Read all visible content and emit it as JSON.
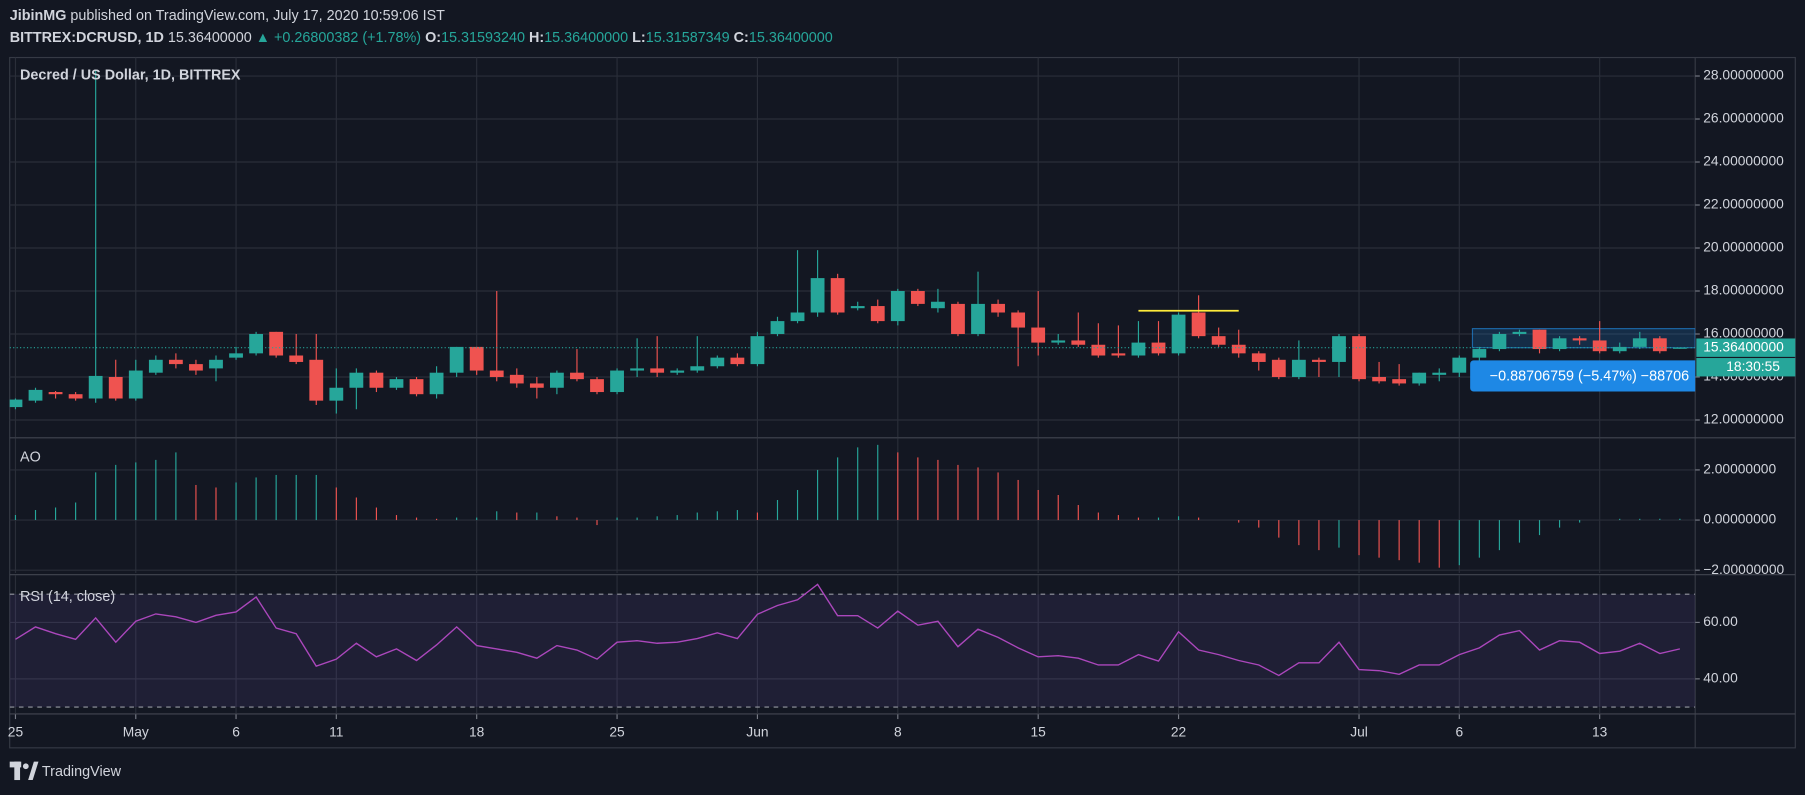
{
  "header": {
    "author": "JibinMG",
    "published": "published on TradingView.com, July 17, 2020 10:59:06 IST",
    "symbol": "BITTREX:DCRUSD, 1D",
    "last": "15.36400000",
    "change": "▲ +0.26800382 (+1.78%)",
    "ohlc": [
      {
        "label": "O:",
        "value": "15.31593240"
      },
      {
        "label": "H:",
        "value": "15.36400000"
      },
      {
        "label": "L:",
        "value": "15.31587349"
      },
      {
        "label": "C:",
        "value": "15.36400000"
      }
    ]
  },
  "chart_data": [
    {
      "type": "candlestick",
      "title": "Decred / US Dollar, 1D, BITTREX",
      "categories": [
        "25",
        null,
        null,
        null,
        null,
        null,
        "May",
        null,
        null,
        null,
        null,
        "6",
        null,
        null,
        null,
        null,
        "11",
        null,
        null,
        null,
        null,
        null,
        null,
        "18",
        null,
        null,
        null,
        null,
        null,
        null,
        "25",
        null,
        null,
        null,
        null,
        null,
        null,
        "Jun",
        null,
        null,
        null,
        null,
        null,
        null,
        "8",
        null,
        null,
        null,
        null,
        null,
        null,
        "15",
        null,
        null,
        null,
        null,
        null,
        null,
        "22",
        null,
        null,
        null,
        null,
        null,
        null,
        null,
        null,
        "Jul",
        null,
        null,
        null,
        null,
        "6",
        null,
        null,
        null,
        null,
        null,
        null,
        "13",
        null,
        null,
        null,
        null
      ],
      "open": [
        12.6,
        12.9,
        13.3,
        13.2,
        13.0,
        14.0,
        13.0,
        14.2,
        14.8,
        14.6,
        14.4,
        14.9,
        15.1,
        16.1,
        15.0,
        14.8,
        12.9,
        13.5,
        14.2,
        13.5,
        13.9,
        13.2,
        14.2,
        15.4,
        14.3,
        14.1,
        13.7,
        13.5,
        14.2,
        13.9,
        13.3,
        14.3,
        14.4,
        14.2,
        14.3,
        14.5,
        14.9,
        14.6,
        16.0,
        16.6,
        17.0,
        18.6,
        17.2,
        17.3,
        16.6,
        18.0,
        17.2,
        17.4,
        16.0,
        17.4,
        17.0,
        16.3,
        15.6,
        15.7,
        15.5,
        15.1,
        15.0,
        15.6,
        15.1,
        17.0,
        15.9,
        15.5,
        15.1,
        14.8,
        14.0,
        14.8,
        14.7,
        15.9,
        14.0,
        13.9,
        13.7,
        14.1,
        14.2,
        14.9,
        15.3,
        16.0,
        16.2,
        15.3,
        15.8,
        15.7,
        15.2,
        15.4,
        15.8,
        15.3159324
      ],
      "high": [
        13.0,
        13.5,
        13.35,
        13.3,
        28.3,
        14.8,
        14.8,
        15.0,
        15.1,
        14.8,
        15.0,
        15.4,
        16.1,
        16.1,
        16.0,
        16.0,
        14.4,
        14.4,
        14.3,
        14.0,
        14.0,
        14.5,
        15.4,
        15.4,
        18.0,
        14.4,
        14.0,
        14.3,
        15.3,
        14.0,
        14.4,
        15.8,
        15.9,
        14.4,
        15.9,
        15.0,
        15.1,
        16.1,
        16.8,
        19.9,
        19.9,
        18.8,
        17.5,
        17.6,
        18.1,
        18.1,
        18.1,
        17.5,
        18.9,
        17.6,
        17.1,
        18.0,
        16.0,
        17.0,
        16.5,
        16.4,
        16.6,
        16.6,
        17.0,
        17.8,
        16.3,
        16.2,
        15.2,
        14.9,
        15.7,
        14.9,
        16.0,
        16.0,
        14.7,
        14.6,
        14.2,
        14.4,
        15.0,
        15.4,
        16.1,
        16.2,
        16.2,
        15.9,
        15.9,
        16.6,
        15.6,
        16.1,
        15.9,
        15.364
      ],
      "low": [
        12.5,
        12.8,
        13.0,
        12.9,
        12.8,
        12.9,
        12.9,
        14.1,
        14.4,
        14.1,
        13.8,
        14.8,
        15.0,
        14.9,
        14.6,
        12.7,
        12.3,
        12.5,
        13.3,
        13.4,
        13.1,
        13.0,
        14.0,
        14.1,
        13.8,
        13.5,
        13.0,
        13.2,
        13.8,
        13.2,
        13.2,
        14.0,
        14.0,
        14.1,
        14.2,
        14.4,
        14.5,
        14.5,
        15.9,
        16.5,
        16.8,
        16.9,
        17.1,
        16.5,
        16.4,
        17.3,
        17.0,
        15.9,
        15.9,
        16.8,
        14.5,
        15.0,
        15.5,
        15.4,
        14.9,
        14.9,
        14.9,
        15.0,
        15.0,
        15.8,
        15.4,
        14.9,
        14.3,
        13.9,
        13.9,
        14.0,
        14.0,
        13.8,
        13.7,
        13.6,
        13.6,
        13.8,
        14.0,
        14.7,
        15.2,
        15.9,
        15.1,
        15.2,
        15.5,
        15.1,
        15.1,
        15.3,
        15.1,
        15.31587349
      ],
      "close": [
        12.95,
        13.4,
        13.2,
        13.0,
        14.05,
        13.0,
        14.3,
        14.8,
        14.6,
        14.3,
        14.8,
        15.1,
        16.0,
        15.0,
        14.7,
        12.9,
        13.5,
        14.2,
        13.5,
        13.9,
        13.2,
        14.2,
        15.4,
        14.3,
        14.0,
        13.7,
        13.5,
        14.2,
        13.9,
        13.3,
        14.3,
        14.4,
        14.2,
        14.3,
        14.5,
        14.9,
        14.6,
        15.9,
        16.6,
        17.0,
        18.6,
        17.0,
        17.3,
        16.6,
        18.0,
        17.4,
        17.5,
        16.0,
        17.4,
        17.0,
        16.3,
        15.6,
        15.7,
        15.5,
        15.0,
        15.0,
        15.6,
        15.1,
        16.9,
        15.9,
        15.5,
        15.1,
        14.7,
        14.0,
        14.8,
        14.7,
        15.9,
        13.9,
        13.8,
        13.7,
        14.2,
        14.2,
        14.9,
        15.3,
        16.0,
        16.1,
        15.3,
        15.8,
        15.7,
        15.2,
        15.4,
        15.8,
        15.2,
        15.364
      ],
      "up_color": "#26a69a",
      "down_color": "#ef5350",
      "ylim": [
        11.2,
        28.86
      ],
      "yticks": [
        {
          "value": 12,
          "label": "12.00000000"
        },
        {
          "value": 14,
          "label": "14.00000000"
        },
        {
          "value": 16,
          "label": "16.00000000"
        },
        {
          "value": 18,
          "label": "18.00000000"
        },
        {
          "value": 20,
          "label": "20.00000000"
        },
        {
          "value": 22,
          "label": "22.00000000"
        },
        {
          "value": 24,
          "label": "24.00000000"
        },
        {
          "value": 26,
          "label": "26.00000000"
        },
        {
          "value": 28,
          "label": "28.00000000"
        }
      ],
      "grid": true,
      "last_price": {
        "value": 15.364,
        "label": "15.36400000"
      },
      "countdown": "18:30:55",
      "annotation_line": {
        "value": 17.08,
        "start": 56,
        "end": 61,
        "color": "#ffeb3b"
      },
      "measure": {
        "from": 16.25,
        "to": 15.36,
        "start": 73,
        "label": "−0.88706759 (−5.47%) −88706",
        "color": "#2196f3"
      }
    },
    {
      "type": "histogram",
      "title": "AO",
      "values": [
        0.2,
        0.4,
        0.5,
        0.7,
        1.9,
        2.2,
        2.3,
        2.4,
        2.7,
        1.4,
        1.3,
        1.5,
        1.7,
        1.8,
        1.8,
        1.8,
        1.3,
        0.9,
        0.5,
        0.2,
        0.1,
        0.05,
        0.1,
        0.1,
        0.35,
        0.3,
        0.3,
        0.15,
        0.1,
        -0.2,
        0.1,
        0.1,
        0.15,
        0.2,
        0.3,
        0.35,
        0.4,
        0.3,
        0.8,
        1.2,
        2.0,
        2.5,
        2.9,
        3.0,
        2.7,
        2.5,
        2.4,
        2.2,
        2.1,
        1.9,
        1.6,
        1.2,
        1.0,
        0.6,
        0.3,
        0.2,
        0.1,
        0.1,
        0.15,
        0.1,
        0.0,
        -0.1,
        -0.3,
        -0.7,
        -1.0,
        -1.2,
        -1.1,
        -1.4,
        -1.5,
        -1.6,
        -1.7,
        -1.9,
        -1.8,
        -1.5,
        -1.2,
        -0.9,
        -0.6,
        -0.3,
        -0.1,
        0.0,
        0.05,
        0.05,
        0.05,
        0.05
      ],
      "up_color": "#26a69a",
      "down_color": "#ef5350",
      "ylim": [
        -2.11,
        3.26
      ],
      "yticks": [
        {
          "value": -2,
          "label": "−2.00000000"
        },
        {
          "value": 0,
          "label": "0.00000000"
        },
        {
          "value": 2,
          "label": "2.00000000"
        }
      ],
      "grid": true
    },
    {
      "type": "line",
      "title": "RSI (14, close)",
      "values": [
        54,
        58.4,
        56,
        54,
        61.6,
        53,
        60.4,
        63,
        62,
        60,
        62.5,
        63.7,
        69,
        58,
        56,
        44.5,
        47,
        52.6,
        47.8,
        50.6,
        46.5,
        52,
        58.4,
        51.8,
        50.6,
        49.4,
        47.3,
        51.8,
        50.2,
        47,
        53,
        53.5,
        52.6,
        53,
        54.3,
        56.3,
        54.3,
        62.9,
        66,
        68,
        73.5,
        62.4,
        62.4,
        58,
        64,
        59,
        60.4,
        51.4,
        57.6,
        54.7,
        51,
        47.8,
        48.2,
        47.3,
        44.9,
        44.9,
        48.6,
        46.3,
        56.7,
        50.2,
        48.6,
        46.5,
        44.9,
        41.2,
        45.7,
        45.7,
        53,
        43.3,
        42.9,
        41.6,
        44.9,
        44.9,
        48.6,
        51,
        55.5,
        57.1,
        50.2,
        53.5,
        53,
        49,
        49.8,
        52.6,
        49,
        50.6
      ],
      "color": "#ab47bc",
      "band_color": "#7e57c2",
      "upper_band": 70,
      "lower_band": 30,
      "ylim": [
        27.8,
        76.7
      ],
      "yticks": [
        {
          "value": 40,
          "label": "40.00"
        },
        {
          "value": 60,
          "label": "60.00"
        }
      ],
      "grid": true
    }
  ],
  "footer": {
    "brand": "TradingView"
  }
}
